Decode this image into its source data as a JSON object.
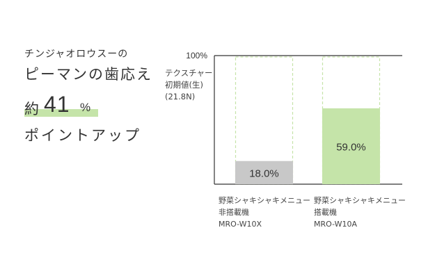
{
  "copy": {
    "lead": "チンジャオロウスーの",
    "headline": "ピーマンの歯応え",
    "amount_prefix": "約",
    "amount_value": "41",
    "amount_unit": "%",
    "tail": "ポイントアップ"
  },
  "chart_data": {
    "type": "bar",
    "ylabel_lines": [
      "テクスチャー",
      "初期値(生)",
      "(21.8N)"
    ],
    "y_tick_labels": [
      "100%"
    ],
    "ylim": [
      0,
      100
    ],
    "grid": false,
    "categories": [
      [
        "野菜シャキシャキメニュー",
        "非搭載機",
        "MRO-W10X"
      ],
      [
        "野菜シャキシャキメニュー",
        "搭載機",
        "MRO-W10A"
      ]
    ],
    "values": [
      18.0,
      59.0
    ],
    "data_labels": [
      "18.0%",
      "59.0%"
    ],
    "colors": [
      "#c8c8c8",
      "#c5e4a9"
    ],
    "reference_outline_color": "#c5e4a9",
    "axis_color": "#333333",
    "highlight_color": "#c5e4a9"
  }
}
